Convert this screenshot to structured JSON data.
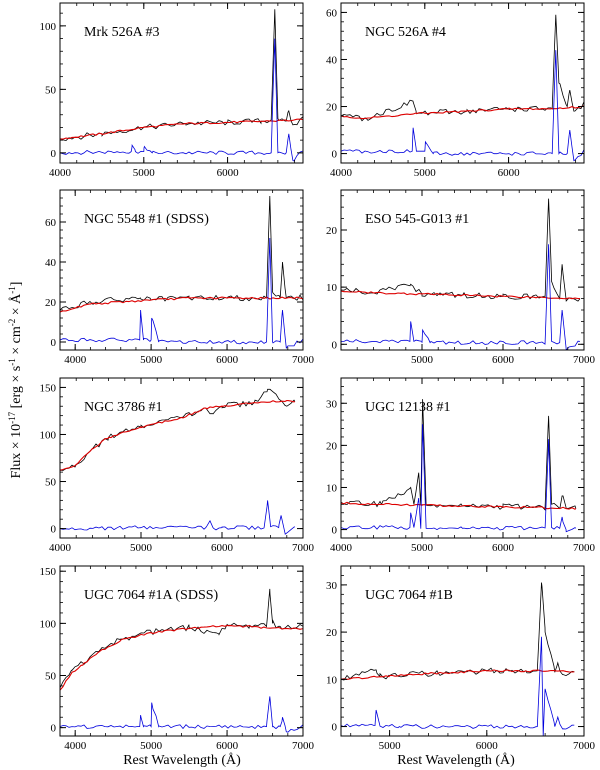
{
  "figure": {
    "ylabel": "Flux × 10",
    "ylabel_exp": "-17",
    "ylabel_units_open": " [erg × s",
    "ylabel_units_s_exp": "-1",
    "ylabel_units_cm": " × cm",
    "ylabel_units_cm_exp": "-2",
    "ylabel_units_A": " × Å",
    "ylabel_units_A_exp": "-1",
    "ylabel_units_close": "]",
    "xlabel_left": "Rest Wavelength (Å)",
    "xlabel_right": "Rest Wavelength (Å)",
    "colors": {
      "observed": "#000000",
      "model": "#dd0000",
      "residual": "#0000dd"
    }
  },
  "chart_data": [
    {
      "type": "line",
      "title": "Mrk 526A #3",
      "xlim": [
        4000,
        6900
      ],
      "ylim": [
        -8,
        118
      ],
      "xticks": [
        4000,
        5000,
        6000
      ],
      "yticks": [
        0,
        50,
        100
      ],
      "xlabel": "",
      "ylabel": "",
      "series": [
        {
          "name": "observed",
          "x": [
            4000,
            4500,
            5000,
            5500,
            6000,
            6400,
            6520,
            6563,
            6600,
            6700,
            6730,
            6780,
            6900
          ],
          "y": [
            11,
            15,
            20,
            23,
            24,
            25,
            26,
            113,
            27,
            25,
            33,
            22,
            27
          ]
        },
        {
          "name": "model",
          "x": [
            4000,
            4500,
            5000,
            5500,
            6000,
            6500,
            6900
          ],
          "y": [
            11,
            15,
            20,
            23,
            24,
            25,
            26
          ]
        },
        {
          "name": "residual",
          "x": [
            4000,
            4850,
            4861,
            4900,
            5000,
            5007,
            5100,
            6520,
            6563,
            6600,
            6700,
            6730,
            6780,
            6900
          ],
          "y": [
            0,
            1,
            6,
            1,
            1,
            5,
            0,
            0,
            90,
            0,
            0,
            15,
            -6,
            2
          ]
        }
      ]
    },
    {
      "type": "line",
      "title": "NGC 526A #4",
      "xlim": [
        4000,
        6900
      ],
      "ylim": [
        -4,
        64
      ],
      "xticks": [
        4000,
        5000,
        6000
      ],
      "yticks": [
        0,
        20,
        40,
        60
      ],
      "xlabel": "",
      "ylabel": "",
      "series": [
        {
          "name": "observed",
          "x": [
            4000,
            4300,
            4861,
            4900,
            5500,
            6000,
            6400,
            6520,
            6563,
            6600,
            6700,
            6730,
            6780,
            6900
          ],
          "y": [
            16,
            15,
            22,
            17,
            18,
            19,
            19,
            19,
            59,
            30,
            20,
            27,
            18,
            21
          ]
        },
        {
          "name": "model",
          "x": [
            4000,
            4300,
            4900,
            5500,
            6000,
            6500,
            6900
          ],
          "y": [
            16,
            15,
            17,
            18,
            19,
            19,
            20
          ]
        },
        {
          "name": "residual",
          "x": [
            4000,
            4850,
            4861,
            4900,
            5000,
            5007,
            5100,
            6520,
            6563,
            6600,
            6700,
            6730,
            6780,
            6900
          ],
          "y": [
            1,
            1,
            11,
            1,
            1,
            5,
            0,
            0,
            44,
            0,
            0,
            10,
            -3,
            1
          ]
        }
      ]
    },
    {
      "type": "line",
      "title": "NGC 5548 #1 (SDSS)",
      "xlim": [
        3800,
        7000
      ],
      "ylim": [
        -4,
        76
      ],
      "xticks": [
        4000,
        5000,
        6000,
        7000
      ],
      "yticks": [
        0,
        20,
        40,
        60
      ],
      "xlabel": "",
      "ylabel": "",
      "series": [
        {
          "name": "observed",
          "x": [
            3800,
            4200,
            4861,
            5000,
            5500,
            6000,
            6520,
            6563,
            6600,
            6700,
            6730,
            6780,
            7000
          ],
          "y": [
            16,
            20,
            22,
            21,
            22,
            22,
            22,
            73,
            25,
            22,
            40,
            22,
            22
          ]
        },
        {
          "name": "model",
          "x": [
            3800,
            4200,
            5000,
            5500,
            6000,
            6500,
            7000
          ],
          "y": [
            15,
            19,
            21,
            22,
            22,
            22,
            22
          ]
        },
        {
          "name": "residual",
          "x": [
            3800,
            4850,
            4861,
            4900,
            5000,
            5007,
            5100,
            6520,
            6563,
            6600,
            6700,
            6730,
            6780,
            7000
          ],
          "y": [
            1,
            1,
            16,
            1,
            1,
            12,
            0,
            0,
            52,
            0,
            0,
            16,
            -3,
            1
          ]
        }
      ]
    },
    {
      "type": "line",
      "title": "ESO 545-G013 #1",
      "xlim": [
        4000,
        7000
      ],
      "ylim": [
        -1,
        27
      ],
      "xticks": [
        5000,
        6000,
        7000
      ],
      "yticks": [
        0,
        10,
        20
      ],
      "xlabel": "",
      "ylabel": "",
      "series": [
        {
          "name": "observed",
          "x": [
            4000,
            4400,
            4861,
            5000,
            5500,
            6000,
            6520,
            6563,
            6600,
            6700,
            6730,
            6780,
            6950
          ],
          "y": [
            9.5,
            9.0,
            10.5,
            8.8,
            8.6,
            8.4,
            8.3,
            25.5,
            11.0,
            8.0,
            14.0,
            7.6,
            8.0
          ]
        },
        {
          "name": "model",
          "x": [
            4000,
            4400,
            5000,
            5500,
            6000,
            6500,
            6950
          ],
          "y": [
            9.3,
            9.0,
            8.8,
            8.6,
            8.4,
            8.2,
            8.0
          ]
        },
        {
          "name": "residual",
          "x": [
            4000,
            4850,
            4861,
            4900,
            5000,
            5007,
            5100,
            6520,
            6563,
            6600,
            6700,
            6730,
            6780,
            6950
          ],
          "y": [
            0.5,
            0.5,
            4.0,
            0.5,
            0.5,
            2.5,
            0.3,
            0.3,
            17.5,
            0.5,
            0.3,
            6.0,
            -1.0,
            0.5
          ]
        }
      ]
    },
    {
      "type": "line",
      "title": "NGC 3786 #1",
      "xlim": [
        4000,
        7000
      ],
      "ylim": [
        -10,
        160
      ],
      "xticks": [
        4000,
        5000,
        6000,
        7000
      ],
      "yticks": [
        0,
        50,
        100,
        150
      ],
      "xlabel": "",
      "ylabel": "",
      "series": [
        {
          "name": "observed",
          "x": [
            4000,
            4200,
            4400,
            4600,
            5000,
            5500,
            5800,
            5890,
            6000,
            6400,
            6563,
            6700,
            6800,
            6900
          ],
          "y": [
            62,
            68,
            85,
            97,
            108,
            118,
            128,
            122,
            130,
            134,
            148,
            138,
            130,
            135
          ]
        },
        {
          "name": "model",
          "x": [
            4000,
            4200,
            4400,
            4600,
            5000,
            5500,
            5800,
            6000,
            6400,
            6800,
            6900
          ],
          "y": [
            62,
            68,
            85,
            97,
            108,
            118,
            128,
            130,
            134,
            136,
            135
          ]
        },
        {
          "name": "residual",
          "x": [
            4000,
            5000,
            5800,
            5850,
            5900,
            6000,
            6520,
            6563,
            6600,
            6700,
            6730,
            6780,
            6900
          ],
          "y": [
            0,
            1,
            1,
            8,
            0,
            1,
            1,
            30,
            2,
            1,
            14,
            -6,
            2
          ]
        }
      ]
    },
    {
      "type": "line",
      "title": "UGC 12138 #1",
      "xlim": [
        4000,
        7000
      ],
      "ylim": [
        -2,
        36
      ],
      "xticks": [
        4000,
        5000,
        6000,
        7000
      ],
      "yticks": [
        0,
        10,
        20,
        30
      ],
      "xlabel": "",
      "ylabel": "",
      "series": [
        {
          "name": "observed",
          "x": [
            4000,
            4500,
            4861,
            4900,
            4959,
            4985,
            5007,
            5050,
            5500,
            6000,
            6520,
            6563,
            6600,
            6700,
            6730,
            6780,
            6900
          ],
          "y": [
            6.5,
            6.0,
            10.0,
            6.0,
            13.5,
            5.8,
            31.0,
            5.8,
            5.6,
            5.4,
            5.3,
            27.0,
            6.0,
            5.0,
            8.0,
            5.0,
            5.0
          ]
        },
        {
          "name": "model",
          "x": [
            4000,
            4500,
            5000,
            5500,
            6000,
            6500,
            6900
          ],
          "y": [
            6.3,
            6.0,
            5.8,
            5.6,
            5.4,
            5.2,
            5.0
          ]
        },
        {
          "name": "residual",
          "x": [
            4000,
            4850,
            4861,
            4900,
            4959,
            4985,
            5007,
            5050,
            5500,
            6520,
            6563,
            6600,
            6700,
            6730,
            6780,
            6900
          ],
          "y": [
            0.5,
            0.5,
            4.0,
            0.5,
            7.5,
            0.2,
            25.0,
            0.3,
            0.3,
            0.3,
            21.5,
            0.5,
            0.3,
            3.0,
            -0.5,
            0.3
          ]
        }
      ]
    },
    {
      "type": "line",
      "title": "UGC 7064 #1A (SDSS)",
      "xlim": [
        3800,
        7000
      ],
      "ylim": [
        -8,
        155
      ],
      "xticks": [
        4000,
        5000,
        6000,
        7000
      ],
      "yticks": [
        0,
        50,
        100,
        150
      ],
      "xlabel": "Rest Wavelength (Å)",
      "ylabel": "",
      "series": [
        {
          "name": "observed",
          "x": [
            3800,
            3950,
            4100,
            4300,
            4600,
            5000,
            5500,
            5890,
            6000,
            6300,
            6520,
            6563,
            6600,
            6700,
            7000
          ],
          "y": [
            38,
            55,
            62,
            73,
            85,
            92,
            96,
            90,
            99,
            98,
            97,
            133,
            100,
            97,
            96
          ]
        },
        {
          "name": "model",
          "x": [
            3800,
            3950,
            4100,
            4300,
            4600,
            5000,
            5500,
            6000,
            6500,
            7000
          ],
          "y": [
            36,
            52,
            60,
            72,
            84,
            91,
            95,
            98,
            96,
            95
          ]
        },
        {
          "name": "residual",
          "x": [
            3800,
            4850,
            4861,
            4900,
            5000,
            5007,
            5100,
            6520,
            6563,
            6600,
            6700,
            6730,
            6780,
            7000
          ],
          "y": [
            1,
            1,
            12,
            1,
            1,
            24,
            1,
            1,
            30,
            1,
            1,
            10,
            -4,
            1
          ]
        }
      ]
    },
    {
      "type": "line",
      "title": "UGC 7064 #1B",
      "xlim": [
        4500,
        7000
      ],
      "ylim": [
        -2,
        34
      ],
      "xticks": [
        5000,
        6000,
        7000
      ],
      "yticks": [
        0,
        10,
        20,
        30
      ],
      "xlabel": "Rest Wavelength (Å)",
      "ylabel": "",
      "series": [
        {
          "name": "observed",
          "x": [
            4500,
            4861,
            4900,
            5000,
            5500,
            6000,
            6400,
            6520,
            6563,
            6600,
            6700,
            6730,
            6780,
            6900
          ],
          "y": [
            10,
            12,
            10.6,
            10.8,
            11.3,
            11.8,
            11.8,
            11.8,
            30.5,
            20.0,
            11.5,
            13.5,
            11.0,
            11.6
          ]
        },
        {
          "name": "model",
          "x": [
            4500,
            5000,
            5500,
            6000,
            6400,
            6900
          ],
          "y": [
            10,
            10.8,
            11.3,
            11.8,
            11.8,
            11.6
          ]
        },
        {
          "name": "residual",
          "x": [
            4500,
            4850,
            4861,
            4900,
            5000,
            5100,
            6520,
            6563,
            6580,
            6600,
            6700,
            6730,
            6780,
            6900
          ],
          "y": [
            0.2,
            0.2,
            3.5,
            0.2,
            0.2,
            0,
            0,
            19.0,
            -2.0,
            8.0,
            0,
            2.0,
            -0.5,
            0.3
          ]
        }
      ]
    }
  ]
}
